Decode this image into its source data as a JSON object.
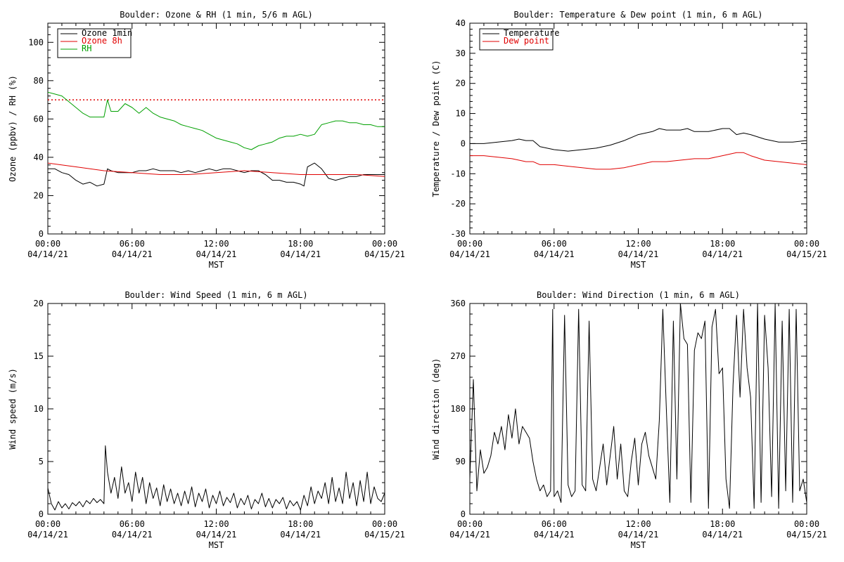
{
  "chart_data": [
    {
      "type": "line",
      "title": "Boulder: Ozone & RH (1 min, 5/6 m AGL)",
      "xlabel": "MST",
      "ylabel": "Ozone (ppbv) / RH (%)",
      "xlim": [
        0,
        24
      ],
      "ylim": [
        0,
        110
      ],
      "yticks": [
        0,
        20,
        40,
        60,
        80,
        100
      ],
      "reference_line": {
        "y": 70,
        "color": "#e00000",
        "style": "dotted"
      },
      "legend": {
        "position": "top-left",
        "entries": [
          "Ozone 1min",
          "Ozone 8h",
          "RH"
        ]
      },
      "series": [
        {
          "name": "Ozone 1min",
          "color": "#000000",
          "x": [
            0,
            0.5,
            1,
            1.5,
            2,
            2.5,
            3,
            3.5,
            4,
            4.25,
            4.5,
            5,
            5.5,
            6,
            6.5,
            7,
            7.5,
            8,
            8.5,
            9,
            9.5,
            10,
            10.5,
            11,
            11.5,
            12,
            12.5,
            13,
            13.5,
            14,
            14.5,
            15,
            15.5,
            16,
            16.5,
            17,
            17.5,
            18,
            18.25,
            18.5,
            18.75,
            19,
            19.5,
            20,
            20.5,
            21,
            21.5,
            22,
            22.5,
            23,
            23.5,
            24
          ],
          "y": [
            34,
            34,
            32,
            31,
            28,
            26,
            27,
            25,
            26,
            34,
            33,
            32,
            32,
            32,
            33,
            33,
            34,
            33,
            33,
            33,
            32,
            33,
            32,
            33,
            34,
            33,
            34,
            34,
            33,
            32,
            33,
            33,
            31,
            28,
            28,
            27,
            27,
            26,
            25,
            35,
            36,
            37,
            34,
            29,
            28,
            29,
            30,
            30,
            31,
            31,
            31,
            31
          ]
        },
        {
          "name": "Ozone 8h",
          "color": "#e00000",
          "x": [
            0,
            2,
            4,
            6,
            8,
            10,
            12,
            14,
            16,
            18,
            20,
            22,
            24
          ],
          "y": [
            37,
            35,
            33,
            32,
            31,
            31,
            32,
            33,
            32,
            31,
            31,
            31,
            30
          ]
        },
        {
          "name": "RH",
          "color": "#00a000",
          "x": [
            0,
            0.5,
            1,
            1.5,
            2,
            2.5,
            3,
            3.5,
            4,
            4.25,
            4.5,
            5,
            5.5,
            6,
            6.5,
            7,
            7.5,
            8,
            8.5,
            9,
            9.5,
            10,
            10.5,
            11,
            11.5,
            12,
            12.5,
            13,
            13.5,
            14,
            14.5,
            15,
            15.5,
            16,
            16.5,
            17,
            17.5,
            18,
            18.5,
            19,
            19.5,
            20,
            20.5,
            21,
            21.5,
            22,
            22.5,
            23,
            23.5,
            24
          ],
          "y": [
            74,
            73,
            72,
            69,
            66,
            63,
            61,
            61,
            61,
            70,
            64,
            64,
            68,
            66,
            63,
            66,
            63,
            61,
            60,
            59,
            57,
            56,
            55,
            54,
            52,
            50,
            49,
            48,
            47,
            45,
            44,
            46,
            47,
            48,
            50,
            51,
            51,
            52,
            51,
            52,
            57,
            58,
            59,
            59,
            58,
            58,
            57,
            57,
            56,
            56
          ]
        }
      ],
      "tick_labels": [
        {
          "time": "00:00",
          "date": "04/14/21"
        },
        {
          "time": "06:00",
          "date": "04/14/21"
        },
        {
          "time": "12:00",
          "date": "04/14/21"
        },
        {
          "time": "18:00",
          "date": "04/14/21"
        },
        {
          "time": "00:00",
          "date": "04/15/21"
        }
      ]
    },
    {
      "type": "line",
      "title": "Boulder: Temperature & Dew point (1 min, 6 m AGL)",
      "xlabel": "MST",
      "ylabel": "Temperature / Dew point (C)",
      "xlim": [
        0,
        24
      ],
      "ylim": [
        -30,
        40
      ],
      "yticks": [
        -30,
        -20,
        -10,
        0,
        10,
        20,
        30,
        40
      ],
      "legend": {
        "position": "top-left",
        "entries": [
          "Temperature",
          "Dew point"
        ]
      },
      "series": [
        {
          "name": "Temperature",
          "color": "#000000",
          "x": [
            0,
            1,
            2,
            3,
            3.5,
            4,
            4.5,
            5,
            6,
            7,
            8,
            9,
            10,
            11,
            12,
            13,
            13.5,
            14,
            15,
            15.5,
            16,
            17,
            18,
            18.5,
            19,
            19.5,
            20,
            21,
            22,
            23,
            24
          ],
          "y": [
            0,
            0,
            0.5,
            1,
            1.5,
            1,
            1,
            -1,
            -2,
            -2.5,
            -2,
            -1.5,
            -0.5,
            1,
            3,
            4,
            5,
            4.5,
            4.5,
            5,
            4,
            4,
            5,
            5,
            3,
            3.5,
            3,
            1.5,
            0.5,
            0.5,
            1
          ]
        },
        {
          "name": "Dew point",
          "color": "#e00000",
          "x": [
            0,
            1,
            2,
            3,
            4,
            4.5,
            5,
            6,
            7,
            8,
            9,
            10,
            11,
            12,
            13,
            14,
            15,
            16,
            17,
            18,
            19,
            19.5,
            20,
            21,
            22,
            23,
            24
          ],
          "y": [
            -4,
            -4,
            -4.5,
            -5,
            -6,
            -6,
            -7,
            -7,
            -7.5,
            -8,
            -8.5,
            -8.5,
            -8,
            -7,
            -6,
            -6,
            -5.5,
            -5,
            -5,
            -4,
            -3,
            -3,
            -4,
            -5.5,
            -6,
            -6.5,
            -7
          ]
        }
      ],
      "tick_labels": [
        {
          "time": "00:00",
          "date": "04/14/21"
        },
        {
          "time": "06:00",
          "date": "04/14/21"
        },
        {
          "time": "12:00",
          "date": "04/14/21"
        },
        {
          "time": "18:00",
          "date": "04/14/21"
        },
        {
          "time": "00:00",
          "date": "04/15/21"
        }
      ]
    },
    {
      "type": "line",
      "title": "Boulder: Wind Speed (1 min, 6 m AGL)",
      "xlabel": "MST",
      "ylabel": "Wind speed (m/s)",
      "xlim": [
        0,
        24
      ],
      "ylim": [
        0,
        20
      ],
      "yticks": [
        0,
        5,
        10,
        15,
        20
      ],
      "series": [
        {
          "name": "Wind speed",
          "color": "#000000",
          "x": [
            0,
            0.25,
            0.5,
            0.75,
            1,
            1.25,
            1.5,
            1.75,
            2,
            2.25,
            2.5,
            2.75,
            3,
            3.25,
            3.5,
            3.75,
            4,
            4.1,
            4.25,
            4.5,
            4.75,
            5,
            5.25,
            5.5,
            5.75,
            6,
            6.25,
            6.5,
            6.75,
            7,
            7.25,
            7.5,
            7.75,
            8,
            8.25,
            8.5,
            8.75,
            9,
            9.25,
            9.5,
            9.75,
            10,
            10.25,
            10.5,
            10.75,
            11,
            11.25,
            11.5,
            11.75,
            12,
            12.25,
            12.5,
            12.75,
            13,
            13.25,
            13.5,
            13.75,
            14,
            14.25,
            14.5,
            14.75,
            15,
            15.25,
            15.5,
            15.75,
            16,
            16.25,
            16.5,
            16.75,
            17,
            17.25,
            17.5,
            17.75,
            18,
            18.25,
            18.5,
            18.75,
            19,
            19.25,
            19.5,
            19.75,
            20,
            20.25,
            20.5,
            20.75,
            21,
            21.25,
            21.5,
            21.75,
            22,
            22.25,
            22.5,
            22.75,
            23,
            23.25,
            23.5,
            23.75,
            24
          ],
          "y": [
            2.5,
            1,
            0.4,
            1.2,
            0.6,
            1,
            0.5,
            1.1,
            0.8,
            1.2,
            0.7,
            1.3,
            1,
            1.5,
            1.1,
            1.4,
            1,
            6.5,
            4,
            2,
            3.5,
            1.5,
            4.5,
            2,
            3,
            1.2,
            4,
            2,
            3.5,
            1,
            3,
            1.5,
            2.5,
            0.8,
            2.8,
            1.2,
            2.4,
            1,
            2,
            0.8,
            2.2,
            1,
            2.6,
            0.7,
            2,
            1.2,
            2.4,
            0.6,
            1.8,
            1,
            2.2,
            0.8,
            1.6,
            1.1,
            2,
            0.6,
            1.5,
            0.9,
            1.8,
            0.5,
            1.4,
            1,
            2,
            0.7,
            1.5,
            0.6,
            1.4,
            1,
            1.6,
            0.5,
            1.3,
            0.8,
            1.2,
            0.4,
            1.8,
            0.8,
            2.6,
            1,
            2.2,
            1.5,
            3,
            1,
            3.5,
            1.2,
            2.5,
            1,
            4,
            1.5,
            3,
            0.8,
            3.2,
            1.2,
            4,
            1,
            2.6,
            1.5,
            1.2,
            2
          ]
        }
      ],
      "tick_labels": [
        {
          "time": "00:00",
          "date": "04/14/21"
        },
        {
          "time": "06:00",
          "date": "04/14/21"
        },
        {
          "time": "12:00",
          "date": "04/14/21"
        },
        {
          "time": "18:00",
          "date": "04/14/21"
        },
        {
          "time": "00:00",
          "date": "04/15/21"
        }
      ]
    },
    {
      "type": "line",
      "title": "Boulder: Wind Direction (1 min, 6 m AGL)",
      "xlabel": "MST",
      "ylabel": "Wind direction (deg)",
      "xlim": [
        0,
        24
      ],
      "ylim": [
        0,
        360
      ],
      "yticks": [
        0,
        90,
        180,
        270,
        360
      ],
      "series": [
        {
          "name": "Wind direction",
          "color": "#000000",
          "x": [
            0,
            0.25,
            0.5,
            0.75,
            1,
            1.25,
            1.5,
            1.75,
            2,
            2.25,
            2.5,
            2.75,
            3,
            3.25,
            3.5,
            3.75,
            4,
            4.25,
            4.5,
            4.75,
            5,
            5.25,
            5.5,
            5.75,
            5.9,
            6,
            6.25,
            6.5,
            6.75,
            7,
            7.25,
            7.5,
            7.75,
            8,
            8.25,
            8.5,
            8.75,
            9,
            9.25,
            9.5,
            9.75,
            10,
            10.25,
            10.5,
            10.75,
            11,
            11.25,
            11.5,
            11.75,
            12,
            12.25,
            12.5,
            12.75,
            13,
            13.25,
            13.5,
            13.75,
            14,
            14.25,
            14.5,
            14.75,
            15,
            15.25,
            15.5,
            15.75,
            16,
            16.25,
            16.5,
            16.75,
            17,
            17.25,
            17.5,
            17.75,
            18,
            18.25,
            18.5,
            18.75,
            19,
            19.25,
            19.5,
            19.75,
            20,
            20.25,
            20.5,
            20.75,
            21,
            21.25,
            21.5,
            21.75,
            22,
            22.25,
            22.5,
            22.75,
            23,
            23.25,
            23.5,
            23.75,
            24
          ],
          "y": [
            60,
            230,
            40,
            110,
            70,
            80,
            100,
            140,
            120,
            150,
            110,
            170,
            130,
            180,
            120,
            150,
            140,
            130,
            90,
            60,
            40,
            50,
            30,
            40,
            350,
            30,
            40,
            20,
            340,
            50,
            30,
            40,
            350,
            50,
            40,
            330,
            60,
            40,
            80,
            120,
            50,
            100,
            150,
            60,
            120,
            40,
            30,
            90,
            130,
            50,
            120,
            140,
            100,
            80,
            60,
            160,
            350,
            180,
            20,
            330,
            60,
            360,
            300,
            290,
            20,
            280,
            310,
            300,
            330,
            10,
            320,
            350,
            240,
            250,
            60,
            10,
            220,
            340,
            200,
            350,
            250,
            200,
            10,
            360,
            20,
            340,
            250,
            30,
            360,
            10,
            330,
            40,
            350,
            20,
            350,
            40,
            60,
            20
          ]
        }
      ],
      "tick_labels": [
        {
          "time": "00:00",
          "date": "04/14/21"
        },
        {
          "time": "06:00",
          "date": "04/14/21"
        },
        {
          "time": "12:00",
          "date": "04/14/21"
        },
        {
          "time": "18:00",
          "date": "04/14/21"
        },
        {
          "time": "00:00",
          "date": "04/15/21"
        }
      ]
    }
  ]
}
